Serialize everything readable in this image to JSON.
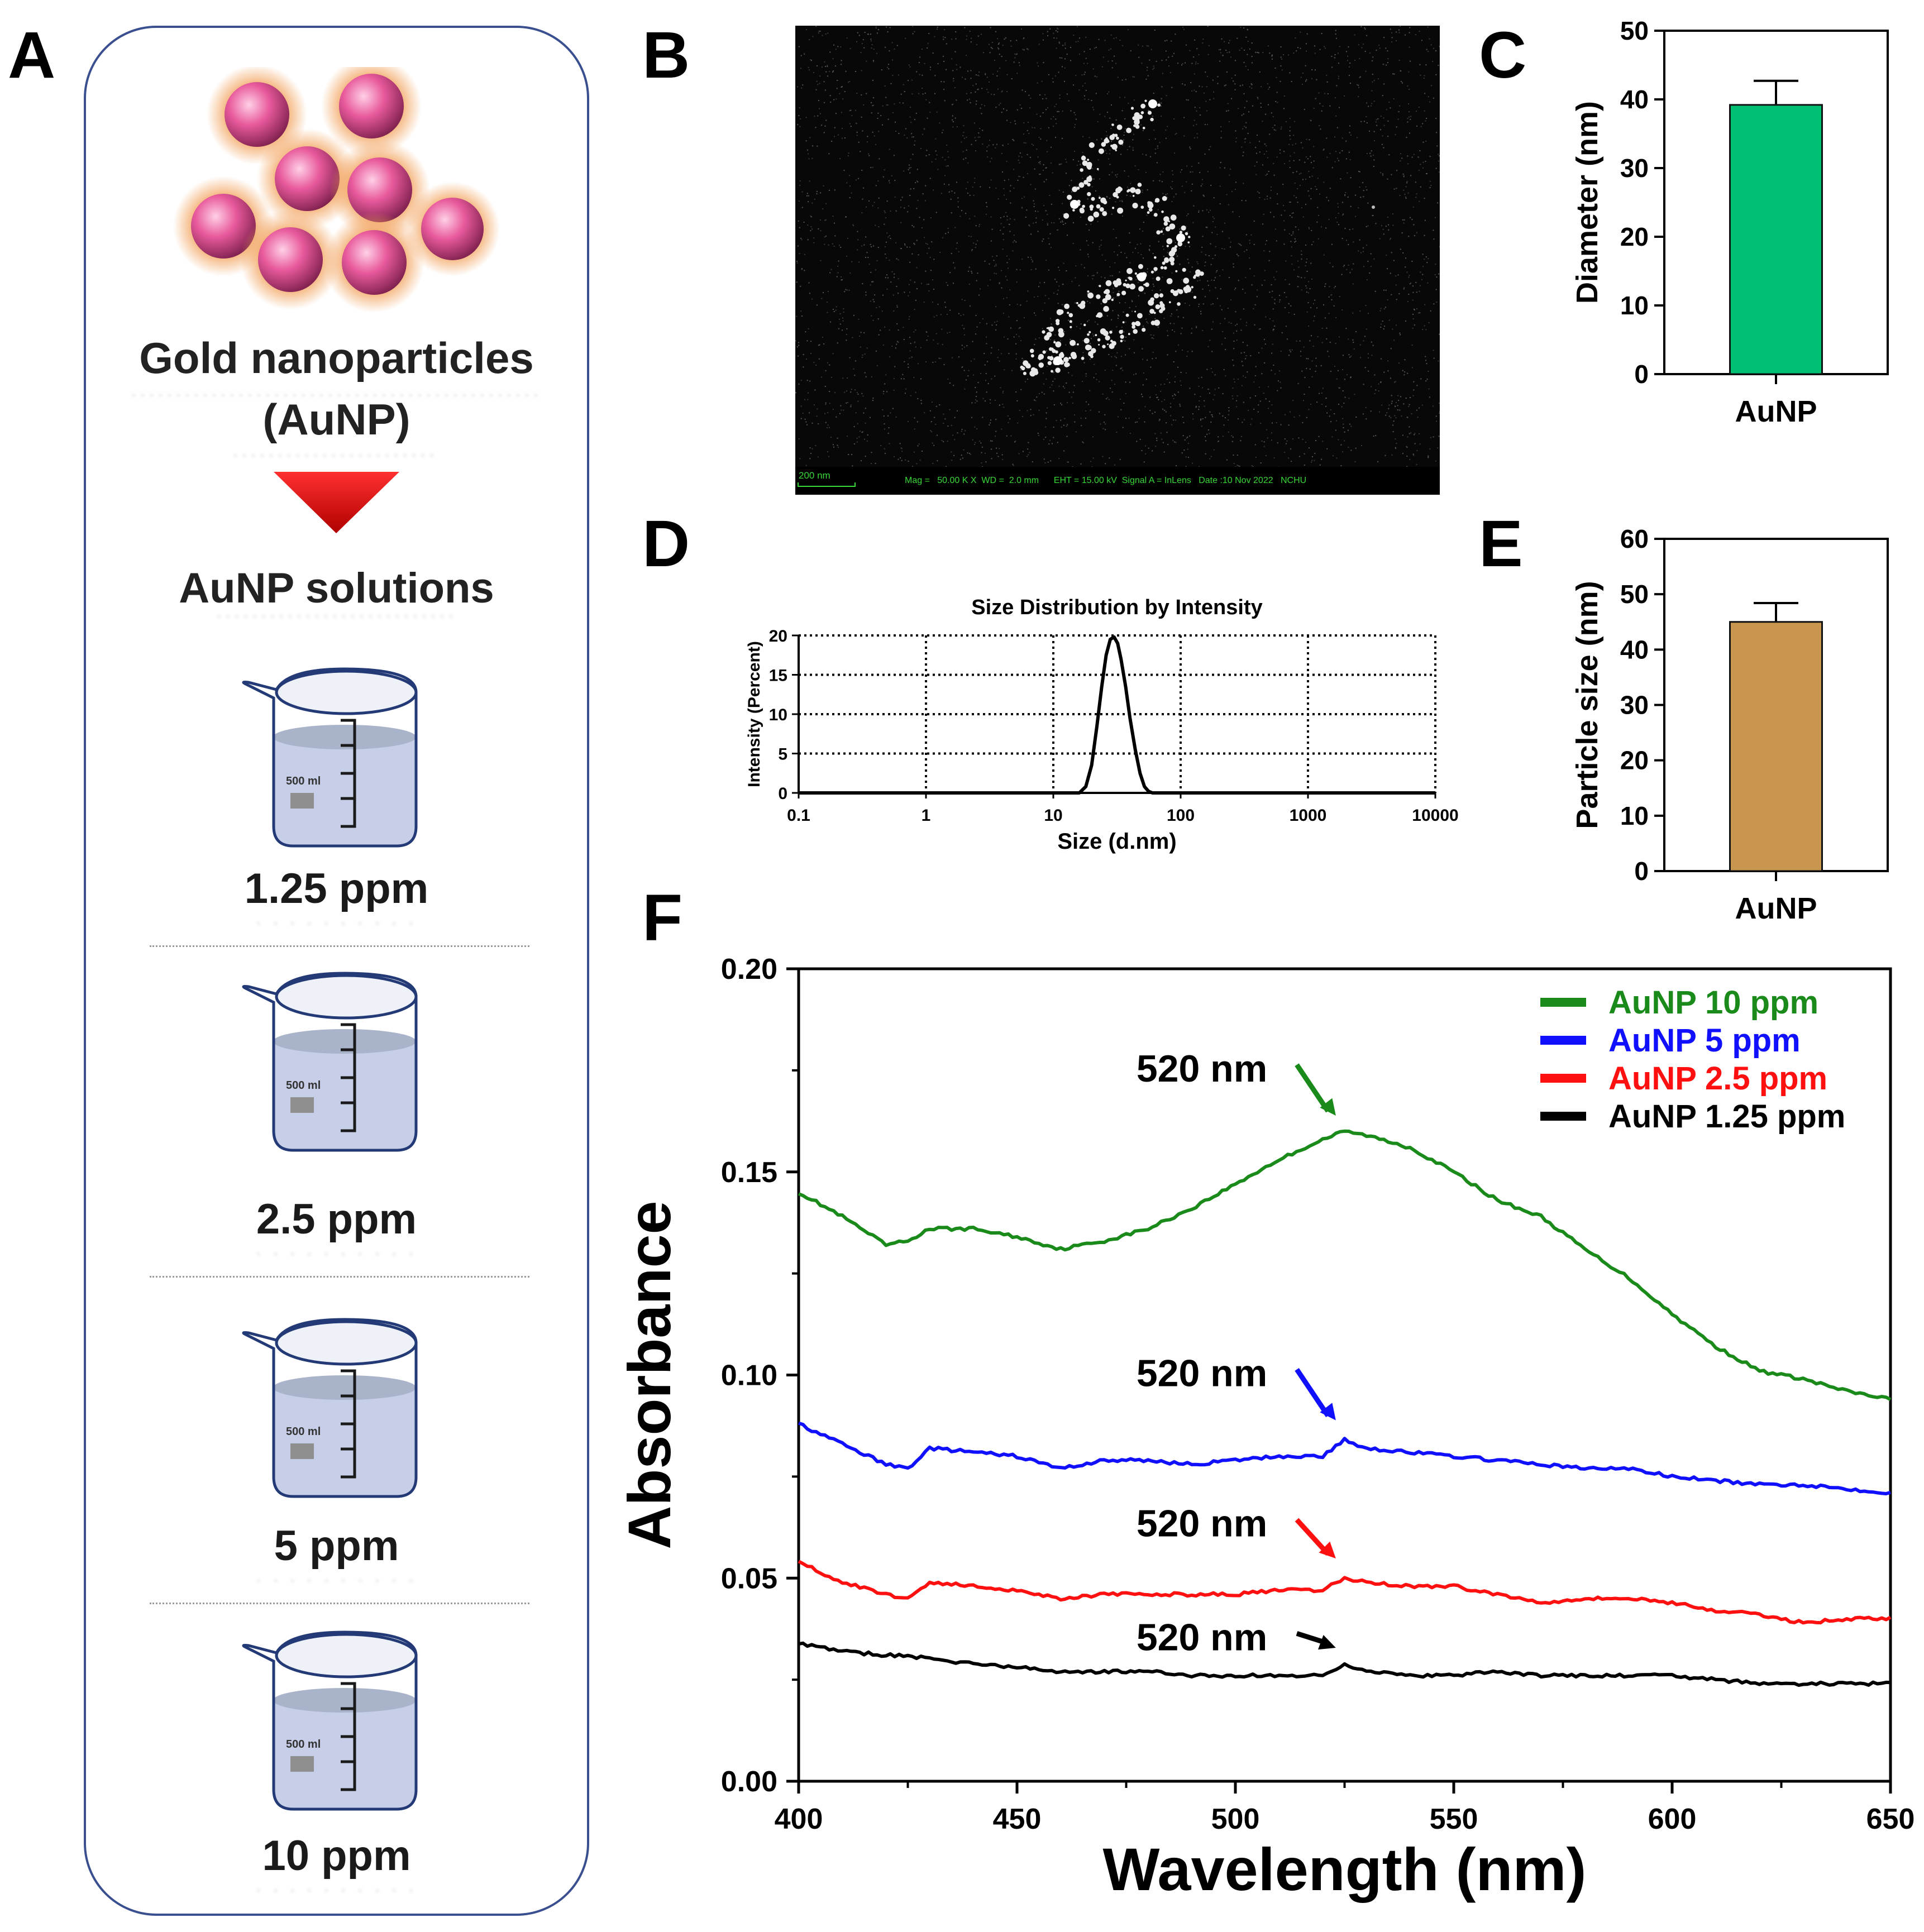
{
  "panels": {
    "a": "A",
    "b": "B",
    "c": "C",
    "d": "D",
    "e": "E",
    "f": "F"
  },
  "schematic": {
    "title_line1": "Gold nanoparticles",
    "title_line2": "(AuNP)",
    "solutions_title": "AuNP solutions",
    "beaker_volume": "500 ml",
    "beakers": [
      "1.25 ppm",
      "2.5 ppm",
      "5 ppm",
      "10 ppm"
    ]
  },
  "sem": {
    "scale_label": "200 nm",
    "info": "Mag =   50.00 K X  WD =  2.0 mm      EHT = 15.00 kV  Signal A = InLens   Date :10 Nov 2022   NCHU"
  },
  "colors": {
    "green": "#00c074",
    "tan": "#c8964f",
    "abs10": "#1a8a1a",
    "abs5": "#1010ff",
    "abs25": "#ff1010",
    "abs125": "#000000"
  },
  "chart_data": [
    {
      "id": "C",
      "type": "bar",
      "categories": [
        "AuNP"
      ],
      "values": [
        39.2
      ],
      "error": [
        3.5
      ],
      "ylabel": "Diameter (nm)",
      "ylim": [
        0,
        50
      ],
      "yticks": [
        0,
        10,
        20,
        30,
        40,
        50
      ]
    },
    {
      "id": "D",
      "type": "line",
      "title": "Size Distribution by Intensity",
      "xlabel": "Size (d.nm)",
      "ylabel": "Intensity (Percent)",
      "xscale": "log",
      "xlim": [
        0.1,
        10000
      ],
      "ylim": [
        0,
        20
      ],
      "xticks": [
        "0.1",
        "1",
        "10",
        "100",
        "1000",
        "10000"
      ],
      "yticks": [
        0,
        5,
        10,
        15,
        20
      ],
      "x": [
        16,
        18,
        20,
        22,
        24,
        26,
        28,
        30,
        32,
        34,
        37,
        40,
        44,
        48,
        52,
        56,
        60
      ],
      "y": [
        0,
        0.8,
        3.5,
        8.5,
        13.5,
        17.5,
        19.5,
        19.8,
        19,
        17,
        13.5,
        9.5,
        5.5,
        2.5,
        0.8,
        0.2,
        0
      ]
    },
    {
      "id": "E",
      "type": "bar",
      "categories": [
        "AuNP"
      ],
      "values": [
        45
      ],
      "error": [
        3.4
      ],
      "ylabel": "Particle size (nm)",
      "ylim": [
        0,
        60
      ],
      "yticks": [
        0,
        10,
        20,
        30,
        40,
        50,
        60
      ]
    },
    {
      "id": "F",
      "type": "line",
      "xlabel": "Wavelength (nm)",
      "ylabel": "Absorbance",
      "xlim": [
        400,
        650
      ],
      "ylim": [
        0,
        0.2
      ],
      "xticks": [
        400,
        450,
        500,
        550,
        600,
        650
      ],
      "yticks": [
        "0.00",
        "0.05",
        "0.10",
        "0.15",
        "0.20"
      ],
      "annotation": "520 nm",
      "x": [
        400,
        410,
        420,
        425,
        430,
        440,
        450,
        460,
        470,
        480,
        490,
        500,
        510,
        520,
        525,
        530,
        540,
        550,
        560,
        570,
        580,
        590,
        600,
        610,
        620,
        630,
        640,
        650
      ],
      "series": [
        {
          "name": "AuNP 10 ppm",
          "color": "#1a8a1a",
          "values": [
            0.145,
            0.139,
            0.132,
            0.133,
            0.136,
            0.136,
            0.134,
            0.131,
            0.133,
            0.136,
            0.141,
            0.147,
            0.153,
            0.158,
            0.16,
            0.159,
            0.156,
            0.15,
            0.143,
            0.139,
            0.131,
            0.124,
            0.115,
            0.107,
            0.101,
            0.099,
            0.096,
            0.094
          ]
        },
        {
          "name": "AuNP 5 ppm",
          "color": "#1010ff",
          "values": [
            0.088,
            0.083,
            0.078,
            0.077,
            0.082,
            0.081,
            0.08,
            0.077,
            0.079,
            0.079,
            0.078,
            0.079,
            0.08,
            0.08,
            0.084,
            0.082,
            0.081,
            0.08,
            0.079,
            0.078,
            0.077,
            0.077,
            0.075,
            0.074,
            0.073,
            0.073,
            0.072,
            0.071
          ]
        },
        {
          "name": "AuNP 2.5 ppm",
          "color": "#ff1010",
          "values": [
            0.054,
            0.049,
            0.046,
            0.045,
            0.049,
            0.048,
            0.047,
            0.045,
            0.046,
            0.046,
            0.046,
            0.046,
            0.047,
            0.047,
            0.05,
            0.049,
            0.048,
            0.048,
            0.046,
            0.044,
            0.045,
            0.045,
            0.044,
            0.042,
            0.041,
            0.039,
            0.04,
            0.04
          ]
        },
        {
          "name": "AuNP 1.25 ppm",
          "color": "#000000",
          "values": [
            0.034,
            0.032,
            0.031,
            0.031,
            0.03,
            0.029,
            0.028,
            0.027,
            0.027,
            0.027,
            0.026,
            0.026,
            0.026,
            0.026,
            0.029,
            0.027,
            0.026,
            0.026,
            0.027,
            0.026,
            0.026,
            0.026,
            0.026,
            0.025,
            0.024,
            0.024,
            0.024,
            0.024
          ]
        }
      ]
    }
  ]
}
